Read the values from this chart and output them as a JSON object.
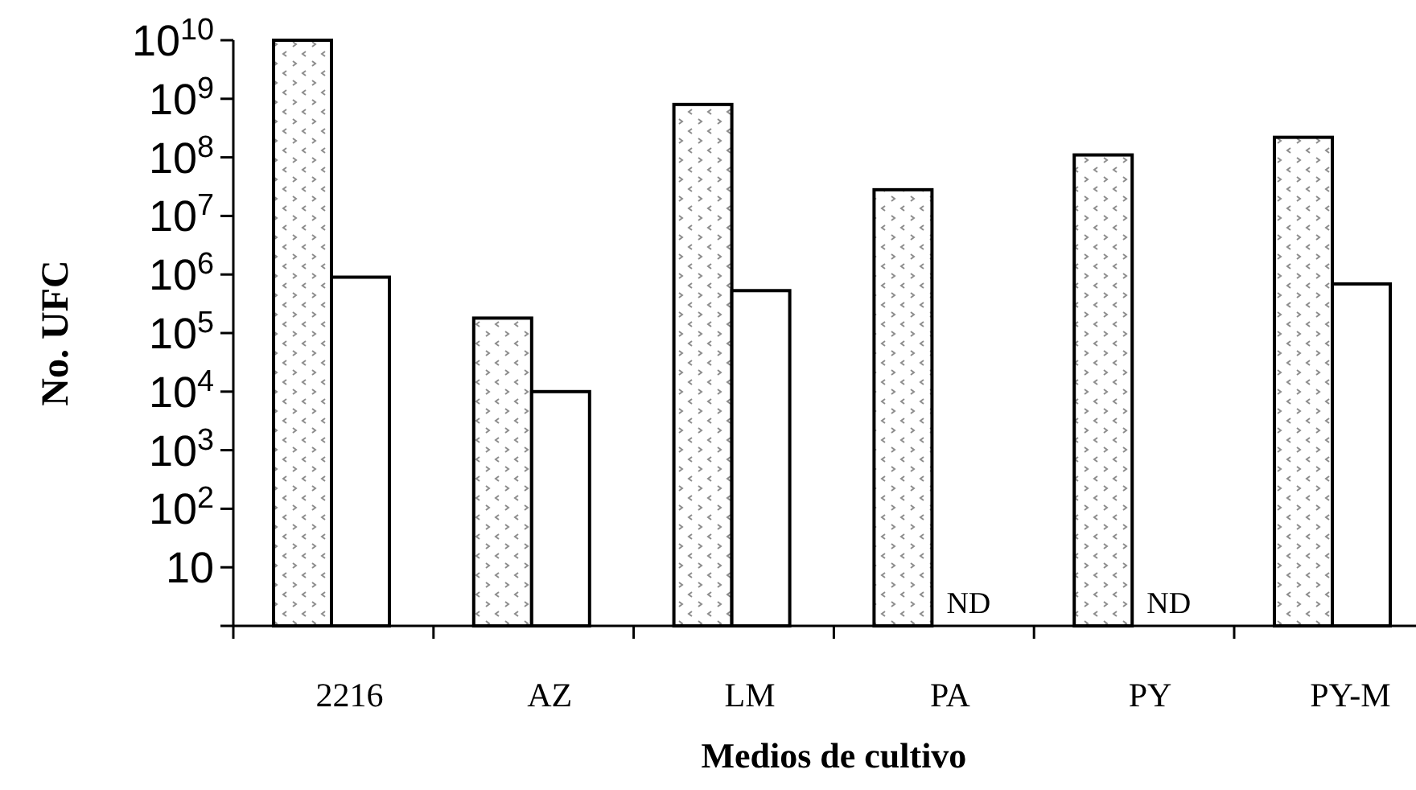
{
  "chart_data": {
    "type": "bar",
    "xlabel": "Medios de cultivo",
    "ylabel": "No. UFC",
    "categories": [
      "2216",
      "AZ",
      "LM",
      "PA",
      "PY",
      "PY-M"
    ],
    "series": [
      {
        "color": "#000000",
        "values": [
          10000000000.0,
          180000.0,
          800000000.0,
          28000000.0,
          110000000.0,
          220000000.0
        ]
      },
      {
        "color": "#ffffff",
        "values": [
          900000.0,
          10000.0,
          530000.0,
          null,
          null,
          690000.0
        ]
      }
    ],
    "log": true,
    "ylim": [
      1,
      10000000000.0
    ],
    "yticks": [
      10,
      {
        "value": 100,
        "label": "10$^{2}$"
      },
      {
        "value": 1000,
        "label": "10$^{3}$"
      },
      {
        "value": 10000.0,
        "label": "10$^{4}$"
      },
      {
        "value": 100000.0,
        "label": "10$^{5}$"
      },
      {
        "value": 1000000.0,
        "label": "10$^{6}$"
      },
      {
        "value": 10000000.0,
        "label": "10$^{7}$"
      },
      {
        "value": 100000000.0,
        "label": "10$^{8}$"
      },
      {
        "value": 1000000000.0,
        "label": "10$^{9}$"
      },
      {
        "value": 10000000000.0,
        "label": "10$^{10}$"
      }
    ],
    "annotations": [
      "ND",
      "ND"
    ]
  }
}
